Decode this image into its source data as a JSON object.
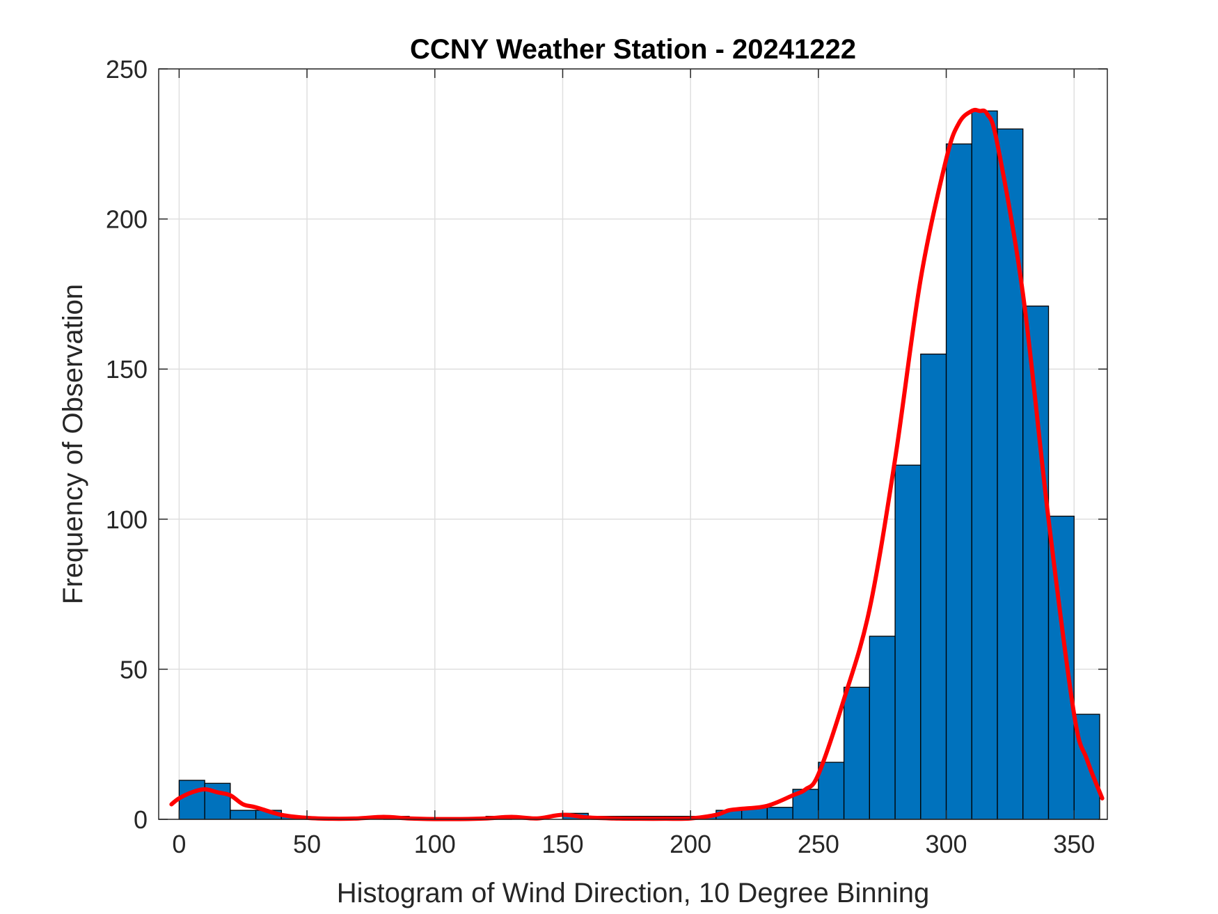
{
  "chart_data": {
    "type": "bar",
    "title": "CCNY Weather Station - 20241222",
    "xlabel": "Histogram of Wind Direction, 10 Degree Binning",
    "ylabel": "Frequency of Observation",
    "xlim": [
      -8,
      363
    ],
    "ylim": [
      0,
      250
    ],
    "xticks": [
      0,
      50,
      100,
      150,
      200,
      250,
      300,
      350
    ],
    "yticks": [
      0,
      50,
      100,
      150,
      200,
      250
    ],
    "grid": true,
    "bin_width": 10,
    "bin_edges": [
      0,
      10,
      20,
      30,
      40,
      50,
      60,
      70,
      80,
      90,
      100,
      110,
      120,
      130,
      140,
      150,
      160,
      170,
      180,
      190,
      200,
      210,
      220,
      230,
      240,
      250,
      260,
      270,
      280,
      290,
      300,
      310,
      320,
      330,
      340,
      350,
      360
    ],
    "values": [
      13,
      12,
      3,
      3,
      1,
      0,
      0,
      0,
      1,
      0,
      0,
      0,
      1,
      0,
      0,
      2,
      1,
      1,
      1,
      1,
      1,
      3,
      4,
      4,
      10,
      19,
      44,
      61,
      118,
      155,
      225,
      236,
      230,
      171,
      101,
      35
    ],
    "bar_color": "#0072BD",
    "series": [
      {
        "type": "line",
        "color": "#FF0000",
        "x": [
          -3,
          0,
          5,
          10,
          15,
          20,
          25,
          30,
          40,
          50,
          60,
          70,
          80,
          90,
          100,
          110,
          120,
          130,
          140,
          150,
          160,
          170,
          180,
          190,
          200,
          210,
          215,
          220,
          230,
          240,
          245,
          250,
          260,
          270,
          280,
          290,
          300,
          305,
          310,
          313,
          316,
          320,
          330,
          340,
          350,
          355,
          361
        ],
        "y": [
          5,
          7,
          9,
          10,
          9,
          8,
          5,
          4,
          1.5,
          0.5,
          0.2,
          0.3,
          0.8,
          0.3,
          0.1,
          0.1,
          0.3,
          0.8,
          0.3,
          1.5,
          0.6,
          0.3,
          0.2,
          0.2,
          0.3,
          1.5,
          3,
          3.5,
          4.5,
          8,
          10,
          15,
          40,
          70,
          120,
          180,
          220,
          232,
          236,
          236,
          235,
          225,
          175,
          100,
          35,
          20,
          7
        ]
      }
    ]
  }
}
